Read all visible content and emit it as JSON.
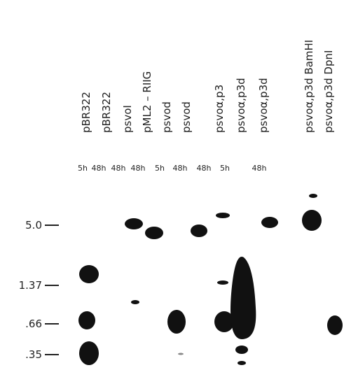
{
  "lanes": [
    {
      "label": "pBR322",
      "time": "5h"
    },
    {
      "label": "pBR322",
      "time": "48h"
    },
    {
      "label": "psvoI",
      "time": "48h"
    },
    {
      "label": "pML2 – RIIG",
      "time": "48h"
    },
    {
      "label": "psvod",
      "time": "5h"
    },
    {
      "label": "psvod",
      "time": "48h"
    },
    {
      "label": "psvoα,p3",
      "time": "48h"
    },
    {
      "label": "psvoα,p3d",
      "time": "5h"
    },
    {
      "label": "psvoα,p3d",
      "time": "48h"
    },
    {
      "label": "psvoα,p3d BamHI"
    },
    {
      "label": "psvoα,p3d DpnI"
    }
  ],
  "markers": [
    "5.0",
    "1.37",
    ".66",
    ".35"
  ]
}
